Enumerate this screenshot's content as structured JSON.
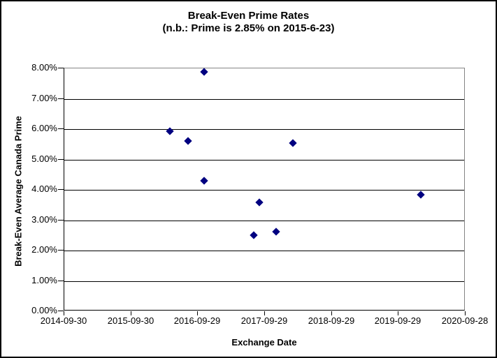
{
  "chart_data": {
    "type": "scatter",
    "title": "Break-Even Prime Rates",
    "subtitle": "(n.b.: Prime is 2.85% on 2015-6-23)",
    "xlabel": "Exchange Date",
    "ylabel": "Break-Even Average Canada Prime",
    "x_ticks": [
      "2014-09-30",
      "2015-09-30",
      "2016-09-29",
      "2017-09-29",
      "2018-09-29",
      "2019-09-29",
      "2020-09-28"
    ],
    "x_range": [
      "2014-09-30",
      "2020-09-28"
    ],
    "y_ticks": [
      "0.00%",
      "1.00%",
      "2.00%",
      "3.00%",
      "4.00%",
      "5.00%",
      "6.00%",
      "7.00%",
      "8.00%"
    ],
    "ylim": [
      0,
      8
    ],
    "grid": "horizontal-major",
    "legend": "none",
    "marker": {
      "shape": "diamond",
      "color": "#000080",
      "size": 11
    },
    "colors": {
      "gridline": "#000000",
      "plot_border": "#848484",
      "axis_line": "#000000",
      "text": "#000000",
      "background": "#ffffff"
    },
    "points": [
      {
        "x": "2016-04-28",
        "y": 5.92
      },
      {
        "x": "2016-08-04",
        "y": 5.6
      },
      {
        "x": "2016-11-02",
        "y": 7.88
      },
      {
        "x": "2016-11-02",
        "y": 4.31
      },
      {
        "x": "2017-07-30",
        "y": 2.51
      },
      {
        "x": "2017-08-28",
        "y": 3.59
      },
      {
        "x": "2017-11-28",
        "y": 2.62
      },
      {
        "x": "2018-02-27",
        "y": 5.54
      },
      {
        "x": "2020-01-29",
        "y": 3.85
      }
    ]
  }
}
